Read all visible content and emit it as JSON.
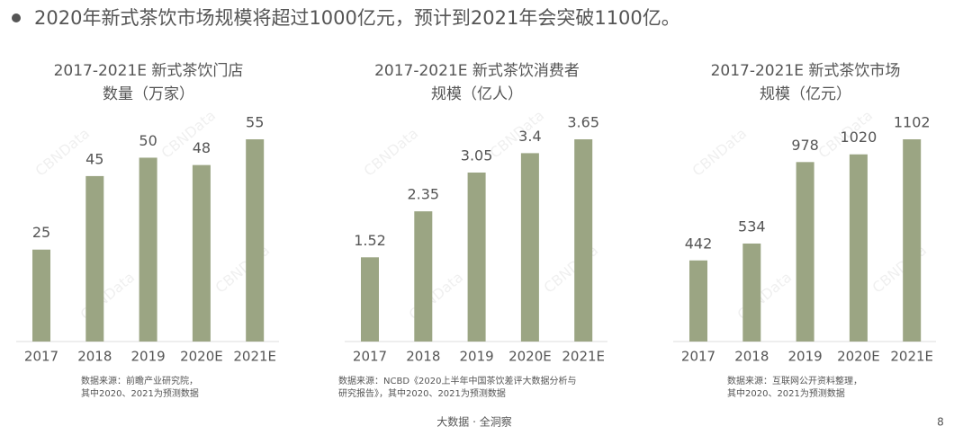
{
  "header": "2020年新式茶饮市场规模将超过1000亿元，预计到2021年会突破1100亿。",
  "watermark": "CBNData",
  "chart_data": [
    {
      "type": "bar",
      "title": [
        "2017-2021E 新式茶饮门店",
        "数量（万家）"
      ],
      "categories": [
        "2017",
        "2018",
        "2019",
        "2020E",
        "2021E"
      ],
      "values": [
        25,
        45,
        50,
        48,
        55
      ],
      "color": "#9ba583",
      "note": [
        "数据来源：前瞻产业研究院，",
        "其中2020、2021为预测数据"
      ]
    },
    {
      "type": "bar",
      "title": [
        "2017-2021E 新式茶饮消费者",
        "规模（亿人）"
      ],
      "categories": [
        "2017",
        "2018",
        "2019",
        "2020E",
        "2021E"
      ],
      "values": [
        1.52,
        2.35,
        3.05,
        3.4,
        3.65
      ],
      "color": "#9ba583",
      "note": [
        "数据来源：NCBD《2020上半年中国茶饮差评大数据分析与",
        "研究报告》，其中2020、2021为预测数据"
      ]
    },
    {
      "type": "bar",
      "title": [
        "2017-2021E 新式茶饮市场",
        "规模（亿元）"
      ],
      "categories": [
        "2017",
        "2018",
        "2019",
        "2020E",
        "2021E"
      ],
      "values": [
        442,
        534,
        978,
        1020,
        1102
      ],
      "color": "#9ba583",
      "note": [
        "数据来源：互联网公开资料整理，",
        "其中2020、2021为预测数据"
      ]
    }
  ],
  "footer": {
    "slogan": "大数据 · 全洞察",
    "page": "8"
  }
}
